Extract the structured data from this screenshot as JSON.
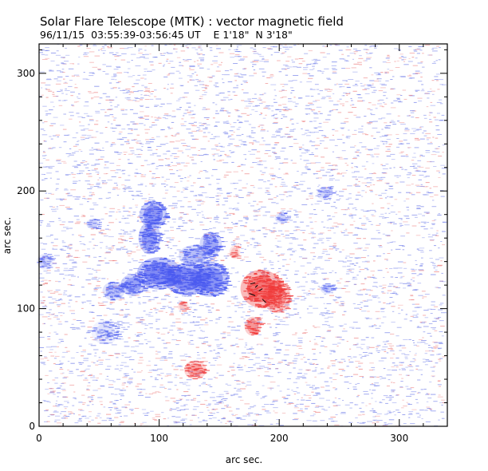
{
  "chart_data": {
    "type": "heatmap",
    "title": "Solar Flare Telescope (MTK) : vector magnetic field",
    "subtitle": "96/11/15  03:55:39-03:56:45 UT    E 1'18\"  N 3'18\"",
    "xlabel": "arc sec.",
    "ylabel": "arc sec.",
    "xlim": [
      0,
      340
    ],
    "ylim": [
      0,
      325
    ],
    "x_ticks": [
      "0",
      "100",
      "200",
      "300"
    ],
    "y_ticks": [
      "0",
      "100",
      "200",
      "300"
    ],
    "x_tick_values": [
      0,
      100,
      200,
      300
    ],
    "y_tick_values": [
      0,
      100,
      200,
      300
    ],
    "colors": {
      "negative_polarity": "#4a5af0",
      "positive_polarity": "#f03a3a",
      "negative_noise": "#6a78e8",
      "positive_noise": "#ec7a7a"
    },
    "regions": [
      {
        "polarity": "negative",
        "x": 95,
        "y": 180,
        "rx": 10,
        "ry": 10,
        "strength": 0.85
      },
      {
        "polarity": "negative",
        "x": 92,
        "y": 160,
        "rx": 8,
        "ry": 12,
        "strength": 0.8
      },
      {
        "polarity": "negative",
        "x": 100,
        "y": 130,
        "rx": 16,
        "ry": 12,
        "strength": 1.0
      },
      {
        "polarity": "negative",
        "x": 123,
        "y": 125,
        "rx": 16,
        "ry": 12,
        "strength": 1.0
      },
      {
        "polarity": "negative",
        "x": 142,
        "y": 125,
        "rx": 14,
        "ry": 13,
        "strength": 0.9
      },
      {
        "polarity": "negative",
        "x": 143,
        "y": 155,
        "rx": 8,
        "ry": 9,
        "strength": 0.7
      },
      {
        "polarity": "negative",
        "x": 78,
        "y": 120,
        "rx": 9,
        "ry": 8,
        "strength": 0.75
      },
      {
        "polarity": "negative",
        "x": 62,
        "y": 115,
        "rx": 8,
        "ry": 7,
        "strength": 0.5
      },
      {
        "polarity": "negative",
        "x": 130,
        "y": 145,
        "rx": 12,
        "ry": 8,
        "strength": 0.5
      },
      {
        "polarity": "negative",
        "x": 45,
        "y": 172,
        "rx": 5,
        "ry": 4,
        "strength": 0.35
      },
      {
        "polarity": "negative",
        "x": 202,
        "y": 177,
        "rx": 5,
        "ry": 4,
        "strength": 0.35
      },
      {
        "polarity": "negative",
        "x": 240,
        "y": 117,
        "rx": 5,
        "ry": 4,
        "strength": 0.4
      },
      {
        "polarity": "negative",
        "x": 238,
        "y": 198,
        "rx": 6,
        "ry": 5,
        "strength": 0.3
      },
      {
        "polarity": "negative",
        "x": 55,
        "y": 80,
        "rx": 10,
        "ry": 9,
        "strength": 0.2
      },
      {
        "polarity": "negative",
        "x": 5,
        "y": 140,
        "rx": 6,
        "ry": 6,
        "strength": 0.3
      },
      {
        "polarity": "positive",
        "x": 185,
        "y": 117,
        "rx": 15,
        "ry": 14,
        "strength": 1.0
      },
      {
        "polarity": "positive",
        "x": 198,
        "y": 110,
        "rx": 10,
        "ry": 12,
        "strength": 0.75
      },
      {
        "polarity": "positive",
        "x": 178,
        "y": 85,
        "rx": 6,
        "ry": 7,
        "strength": 0.7
      },
      {
        "polarity": "positive",
        "x": 130,
        "y": 48,
        "rx": 8,
        "ry": 7,
        "strength": 0.6
      },
      {
        "polarity": "positive",
        "x": 120,
        "y": 102,
        "rx": 4,
        "ry": 4,
        "strength": 0.35
      },
      {
        "polarity": "positive",
        "x": 163,
        "y": 148,
        "rx": 4,
        "ry": 5,
        "strength": 0.35
      }
    ],
    "vectors": [
      {
        "x": 176,
        "y": 121,
        "dx": 4,
        "dy": 1
      },
      {
        "x": 175,
        "y": 113,
        "dx": 5,
        "dy": -2
      },
      {
        "x": 183,
        "y": 115,
        "dx": 3,
        "dy": 2
      },
      {
        "x": 186,
        "y": 108,
        "dx": 3,
        "dy": -3
      },
      {
        "x": 180,
        "y": 118,
        "dx": 2,
        "dy": 2
      }
    ]
  }
}
